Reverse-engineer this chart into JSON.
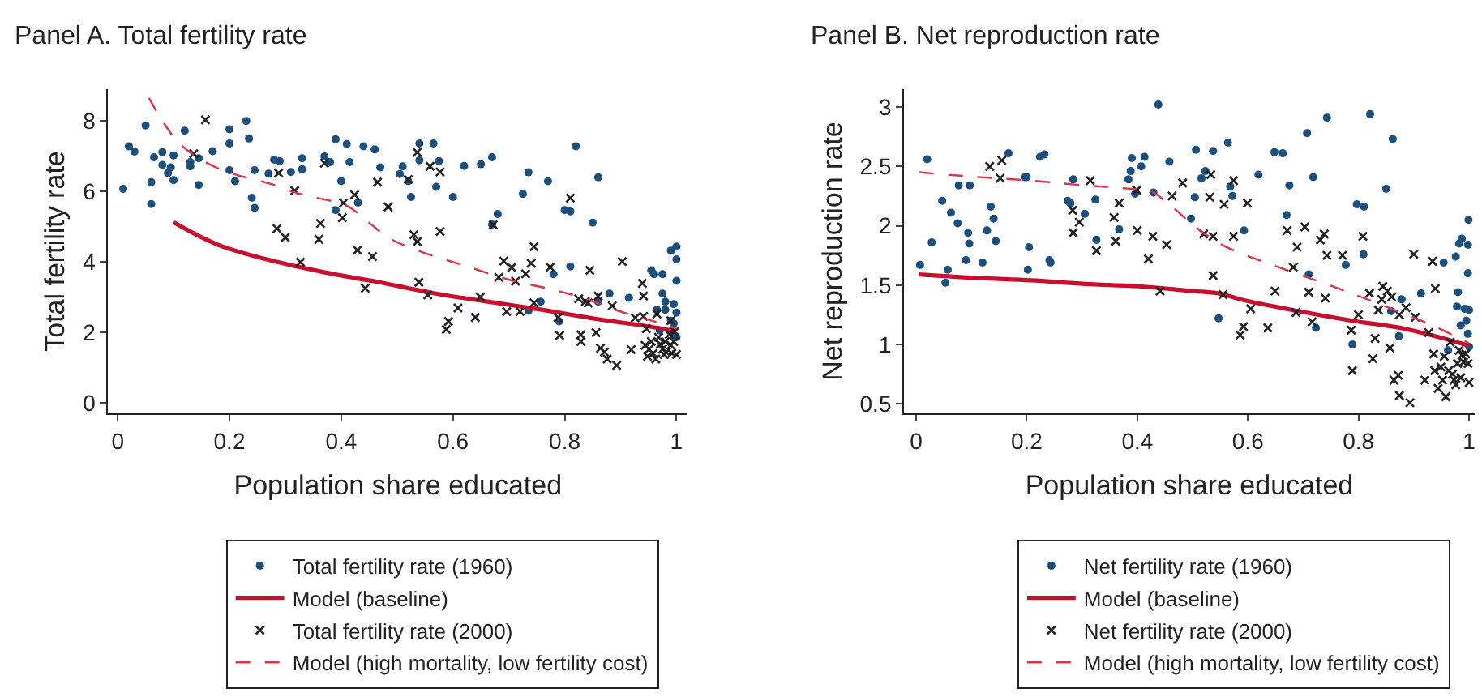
{
  "chart_data": [
    {
      "type": "scatter",
      "title": "Panel A. Total fertility rate",
      "xlabel": "Population share educated",
      "ylabel": "Total fertility rate",
      "xlim": [
        -0.017,
        1.02
      ],
      "xticks": [
        0,
        0.2,
        0.4,
        0.6,
        0.8,
        1
      ],
      "ylim": [
        -0.3,
        8.9
      ],
      "yticks": [
        0,
        2,
        4,
        6,
        8
      ],
      "legend": "bottom",
      "series": [
        {
          "name": "Total fertility rate (1960)",
          "marker": "circle",
          "color": "#1b4f7e",
          "x": [
            0.01,
            0.02,
            0.03,
            0.05,
            0.06,
            0.06,
            0.065,
            0.08,
            0.08,
            0.09,
            0.095,
            0.1,
            0.1,
            0.12,
            0.13,
            0.13,
            0.145,
            0.145,
            0.17,
            0.2,
            0.2,
            0.21,
            0.2,
            0.23,
            0.235,
            0.24,
            0.245,
            0.245,
            0.27,
            0.28,
            0.29,
            0.31,
            0.33,
            0.33,
            0.37,
            0.38,
            0.39,
            0.4,
            0.41,
            0.39,
            0.415,
            0.43,
            0.44,
            0.46,
            0.47,
            0.505,
            0.51,
            0.52,
            0.525,
            0.54,
            0.54,
            0.57,
            0.565,
            0.575,
            0.6,
            0.62,
            0.65,
            0.67,
            0.68,
            0.67,
            0.725,
            0.735,
            0.757,
            0.735,
            0.77,
            0.78,
            0.79,
            0.8,
            0.81,
            0.81,
            0.82,
            0.85,
            0.86,
            0.86,
            0.88,
            0.915,
            0.955,
            0.96,
            0.965,
            0.97,
            0.975,
            0.975,
            0.98,
            0.98,
            0.99,
            0.99,
            0.99,
            1.0,
            1.0,
            1.0,
            0.995,
            1.0,
            0.995,
            1.0
          ],
          "values": [
            6.07,
            7.28,
            7.13,
            7.87,
            6.26,
            5.64,
            6.97,
            6.75,
            7.11,
            6.52,
            6.68,
            6.32,
            7.02,
            7.72,
            6.83,
            6.71,
            6.94,
            6.18,
            7.14,
            7.36,
            7.76,
            6.29,
            6.6,
            8.0,
            7.5,
            5.82,
            5.53,
            6.6,
            6.5,
            6.9,
            6.86,
            6.55,
            6.63,
            6.94,
            6.99,
            6.83,
            7.48,
            6.29,
            7.34,
            5.47,
            6.83,
            5.68,
            7.28,
            7.19,
            6.68,
            6.49,
            6.71,
            6.29,
            5.84,
            7.36,
            6.88,
            6.13,
            7.36,
            6.86,
            5.84,
            6.72,
            6.77,
            6.97,
            5.36,
            5.06,
            5.93,
            2.61,
            2.87,
            6.54,
            6.29,
            3.65,
            2.31,
            5.47,
            5.43,
            3.87,
            7.28,
            5.11,
            6.4,
            2.87,
            3.1,
            2.98,
            3.76,
            3.65,
            2.64,
            2.05,
            3.65,
            3.1,
            2.87,
            2.64,
            4.32,
            2.33,
            2.02,
            4.43,
            4.07,
            3.46,
            2.8,
            2.56,
            2.25,
            1.86
          ]
        },
        {
          "name": "Model (baseline)",
          "type": "line",
          "line_style": "solid",
          "color": "#c8102e",
          "x": [
            0.1,
            0.177,
            0.274,
            0.371,
            0.468,
            0.565,
            0.662,
            0.759,
            0.856,
            0.953,
            1.0
          ],
          "values": [
            5.12,
            4.5,
            4.04,
            3.7,
            3.42,
            3.11,
            2.87,
            2.64,
            2.38,
            2.16,
            2.02
          ]
        },
        {
          "name": "Total fertility rate (2000)",
          "marker": "cross",
          "color": "#222222",
          "x": [
            0.157,
            0.136,
            0.317,
            0.288,
            0.285,
            0.3,
            0.327,
            0.36,
            0.363,
            0.37,
            0.402,
            0.404,
            0.424,
            0.429,
            0.443,
            0.456,
            0.465,
            0.484,
            0.52,
            0.53,
            0.536,
            0.536,
            0.539,
            0.555,
            0.559,
            0.577,
            0.577,
            0.588,
            0.592,
            0.609,
            0.64,
            0.649,
            0.672,
            0.682,
            0.691,
            0.696,
            0.705,
            0.712,
            0.72,
            0.73,
            0.74,
            0.745,
            0.745,
            0.774,
            0.788,
            0.791,
            0.81,
            0.825,
            0.829,
            0.829,
            0.837,
            0.845,
            0.842,
            0.856,
            0.86,
            0.864,
            0.871,
            0.876,
            0.885,
            0.893,
            0.903,
            0.919,
            0.926,
            0.939,
            0.941,
            0.941,
            0.944,
            0.946,
            0.948,
            0.951,
            0.955,
            0.958,
            0.963,
            0.965,
            0.968,
            0.971,
            0.975,
            0.978,
            0.98,
            0.982,
            0.987,
            0.99,
            0.992,
            0.995,
            0.997,
            1.0,
            0.99
          ],
          "values": [
            8.03,
            7.07,
            6.02,
            6.52,
            4.94,
            4.69,
            3.99,
            4.64,
            5.09,
            6.8,
            5.25,
            5.67,
            5.9,
            4.33,
            3.25,
            4.15,
            6.26,
            5.56,
            6.34,
            4.77,
            4.57,
            7.11,
            3.42,
            3.06,
            6.71,
            6.55,
            4.86,
            2.08,
            2.31,
            2.69,
            2.42,
            3.0,
            5.05,
            3.56,
            4.02,
            2.59,
            3.84,
            3.45,
            2.59,
            3.66,
            3.96,
            4.43,
            2.83,
            3.85,
            2.42,
            1.91,
            5.81,
            2.95,
            1.93,
            1.74,
            2.87,
            3.76,
            2.83,
            1.99,
            3.03,
            1.55,
            1.44,
            1.24,
            2.75,
            1.06,
            4.01,
            1.51,
            2.41,
            3.39,
            3.03,
            2.45,
            1.63,
            2.1,
            1.32,
            1.52,
            1.74,
            1.4,
            1.24,
            2.52,
            1.86,
            1.66,
            1.52,
            1.37,
            1.74,
            1.44,
            1.94,
            1.63,
            1.4,
            1.74,
            2.02,
            1.37,
            2.33
          ]
        },
        {
          "name": "Model (high mortality, low fertility cost)",
          "type": "line",
          "line_style": "dashed",
          "color": "#d9344a",
          "x": [
            0.056,
            0.08,
            0.109,
            0.148,
            0.196,
            0.274,
            0.332,
            0.41,
            0.449,
            0.487,
            0.546,
            0.623,
            0.701,
            0.779,
            0.837,
            0.905,
            0.973,
            1.0
          ],
          "values": [
            8.65,
            8.0,
            7.38,
            6.91,
            6.55,
            6.21,
            5.9,
            5.59,
            5.12,
            4.66,
            4.27,
            3.88,
            3.49,
            3.21,
            2.95,
            2.56,
            2.25,
            2.1
          ]
        }
      ]
    },
    {
      "type": "scatter",
      "title": "Panel B. Net reproduction rate",
      "xlabel": "Population share educated",
      "ylabel": "Net reproduction rate",
      "xlim": [
        -0.022,
        1.01
      ],
      "xticks": [
        0,
        0.2,
        0.4,
        0.6,
        0.8,
        1
      ],
      "ylim": [
        0.42,
        3.15
      ],
      "yticks": [
        0.5,
        1,
        1.5,
        2,
        2.5,
        3
      ],
      "legend": "bottom",
      "series": [
        {
          "name": "Net fertility rate (1960)",
          "marker": "circle",
          "color": "#1b4f7e",
          "x": [
            0.007,
            0.02,
            0.028,
            0.047,
            0.053,
            0.057,
            0.063,
            0.075,
            0.077,
            0.09,
            0.094,
            0.097,
            0.096,
            0.12,
            0.128,
            0.135,
            0.14,
            0.144,
            0.167,
            0.196,
            0.2,
            0.202,
            0.204,
            0.224,
            0.232,
            0.241,
            0.243,
            0.274,
            0.279,
            0.284,
            0.305,
            0.326,
            0.324,
            0.367,
            0.384,
            0.388,
            0.39,
            0.396,
            0.407,
            0.413,
            0.429,
            0.438,
            0.458,
            0.497,
            0.504,
            0.506,
            0.516,
            0.523,
            0.537,
            0.547,
            0.564,
            0.568,
            0.572,
            0.593,
            0.619,
            0.648,
            0.663,
            0.67,
            0.675,
            0.707,
            0.71,
            0.718,
            0.723,
            0.743,
            0.777,
            0.789,
            0.797,
            0.809,
            0.81,
            0.821,
            0.85,
            0.859,
            0.862,
            0.873,
            0.878,
            0.913,
            0.954,
            0.962,
            0.976,
            0.978,
            0.98,
            0.982,
            0.985,
            0.987,
            0.992,
            0.995,
            0.998,
            0.998,
            0.999,
            0.998,
            1.0,
            1.0
          ],
          "values": [
            1.67,
            2.56,
            1.86,
            2.21,
            1.52,
            1.63,
            2.11,
            2.02,
            2.34,
            1.71,
            1.94,
            2.34,
            1.85,
            1.69,
            1.96,
            2.16,
            2.06,
            1.87,
            2.61,
            2.41,
            2.41,
            1.63,
            1.82,
            2.58,
            2.6,
            1.71,
            1.69,
            2.21,
            2.19,
            2.39,
            2.1,
            1.88,
            2.22,
            1.97,
            2.39,
            2.46,
            2.57,
            2.27,
            2.5,
            2.58,
            2.28,
            3.02,
            2.54,
            2.06,
            2.24,
            2.64,
            2.4,
            2.46,
            2.63,
            1.22,
            2.7,
            2.33,
            2.25,
            1.96,
            2.43,
            2.62,
            2.61,
            2.09,
            2.34,
            2.78,
            1.59,
            2.41,
            1.14,
            2.91,
            1.67,
            1.0,
            2.18,
            1.76,
            2.16,
            2.94,
            2.31,
            1.28,
            2.73,
            1.07,
            1.38,
            1.43,
            1.69,
            0.95,
            1.74,
            1.32,
            1.44,
            1.85,
            1.16,
            1.89,
            1.3,
            1.2,
            1.84,
            1.6,
            2.05,
            1.09,
            0.98,
            1.29
          ]
        },
        {
          "name": "Model (baseline)",
          "type": "line",
          "line_style": "solid",
          "color": "#c8102e",
          "x": [
            0.005,
            0.111,
            0.208,
            0.305,
            0.402,
            0.499,
            0.547,
            0.595,
            0.692,
            0.789,
            0.886,
            1.0
          ],
          "values": [
            1.59,
            1.56,
            1.54,
            1.51,
            1.49,
            1.45,
            1.43,
            1.37,
            1.28,
            1.2,
            1.13,
            0.99
          ]
        },
        {
          "name": "Net fertility rate (2000)",
          "marker": "cross",
          "color": "#222222",
          "x": [
            0.133,
            0.155,
            0.152,
            0.283,
            0.284,
            0.295,
            0.315,
            0.326,
            0.358,
            0.361,
            0.367,
            0.399,
            0.4,
            0.42,
            0.428,
            0.441,
            0.453,
            0.463,
            0.482,
            0.531,
            0.52,
            0.533,
            0.537,
            0.537,
            0.555,
            0.557,
            0.574,
            0.574,
            0.586,
            0.592,
            0.599,
            0.605,
            0.636,
            0.649,
            0.671,
            0.682,
            0.687,
            0.689,
            0.703,
            0.71,
            0.716,
            0.731,
            0.738,
            0.743,
            0.74,
            0.771,
            0.787,
            0.789,
            0.8,
            0.808,
            0.82,
            0.826,
            0.83,
            0.836,
            0.842,
            0.844,
            0.852,
            0.857,
            0.86,
            0.864,
            0.872,
            0.874,
            0.874,
            0.886,
            0.893,
            0.9,
            0.903,
            0.92,
            0.927,
            0.934,
            0.936,
            0.938,
            0.939,
            0.944,
            0.949,
            0.952,
            0.955,
            0.958,
            0.963,
            0.966,
            0.97,
            0.973,
            0.976,
            0.979,
            0.982,
            0.985,
            0.987,
            0.99,
            0.994,
            1.0,
            0.998
          ],
          "values": [
            2.5,
            2.55,
            2.4,
            2.13,
            1.94,
            2.03,
            2.38,
            1.79,
            2.07,
            1.87,
            2.19,
            2.3,
            1.96,
            1.72,
            1.91,
            1.45,
            1.84,
            2.25,
            2.36,
            2.24,
            1.93,
            2.43,
            1.91,
            1.58,
            1.42,
            2.18,
            2.38,
            1.91,
            1.08,
            1.15,
            2.19,
            1.3,
            1.14,
            1.45,
            1.96,
            1.65,
            1.27,
            1.82,
            1.99,
            1.44,
            1.19,
            1.88,
            1.93,
            1.75,
            1.39,
            1.75,
            1.12,
            0.78,
            1.25,
            1.91,
            1.43,
            0.88,
            1.05,
            1.29,
            1.38,
            1.49,
            1.45,
            0.97,
            1.4,
            0.7,
            0.74,
            0.57,
            1.25,
            1.31,
            0.51,
            1.76,
            1.23,
            0.7,
            1.1,
            1.7,
            0.92,
            0.78,
            1.47,
            0.63,
            0.81,
            0.7,
            0.9,
            0.56,
            0.78,
            1.02,
            0.75,
            0.7,
            0.66,
            0.84,
            0.95,
            0.72,
            0.91,
            0.85,
            0.92,
            0.68,
            0.84
          ]
        },
        {
          "name": "Model (high mortality, low fertility cost)",
          "type": "line",
          "line_style": "dashed",
          "color": "#d9344a",
          "x": [
            0.005,
            0.111,
            0.208,
            0.305,
            0.392,
            0.421,
            0.46,
            0.508,
            0.557,
            0.644,
            0.741,
            0.838,
            0.934,
            1.0
          ],
          "values": [
            2.45,
            2.41,
            2.38,
            2.34,
            2.31,
            2.3,
            2.17,
            1.98,
            1.83,
            1.67,
            1.51,
            1.34,
            1.16,
            1.01
          ]
        }
      ]
    }
  ]
}
